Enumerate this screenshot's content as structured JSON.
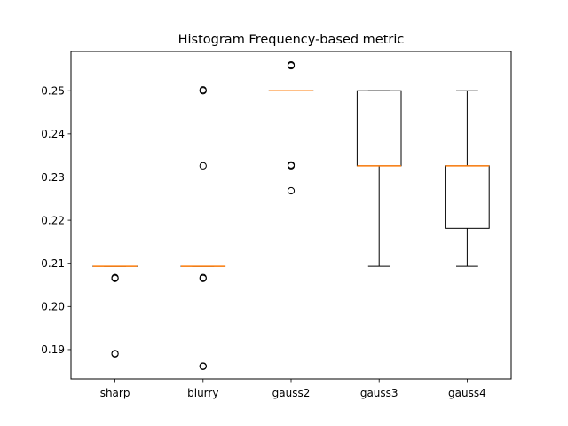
{
  "chart_data": {
    "type": "box",
    "title": "Histogram Frequency-based metric",
    "xlabel": "",
    "ylabel": "",
    "ylim": [
      0.1832,
      0.2591
    ],
    "yticks": [
      "0.19",
      "0.20",
      "0.21",
      "0.22",
      "0.23",
      "0.24",
      "0.25"
    ],
    "ytick_values": [
      0.19,
      0.2,
      0.21,
      0.22,
      0.23,
      0.24,
      0.25
    ],
    "grid": false,
    "categories": [
      "sharp",
      "blurry",
      "gauss2",
      "gauss3",
      "gauss4"
    ],
    "boxes": [
      {
        "q1": 0.2093,
        "median": 0.2093,
        "q3": 0.2093,
        "whisker_low": 0.2093,
        "whisker_high": 0.2093,
        "outliers": [
          0.2065,
          0.2066,
          0.2067,
          0.189,
          0.1891
        ]
      },
      {
        "q1": 0.2093,
        "median": 0.2093,
        "q3": 0.2093,
        "whisker_low": 0.2093,
        "whisker_high": 0.2093,
        "outliers": [
          0.25,
          0.2502,
          0.2326,
          0.2065,
          0.2067,
          0.1861,
          0.1862
        ]
      },
      {
        "q1": 0.25,
        "median": 0.25,
        "q3": 0.25,
        "whisker_low": 0.25,
        "whisker_high": 0.25,
        "outliers": [
          0.2558,
          0.256,
          0.2326,
          0.2328,
          0.2268
        ]
      },
      {
        "q1": 0.2326,
        "median": 0.2326,
        "q3": 0.25,
        "whisker_low": 0.2093,
        "whisker_high": 0.25,
        "outliers": []
      },
      {
        "q1": 0.2181,
        "median": 0.2326,
        "q3": 0.2326,
        "whisker_low": 0.2093,
        "whisker_high": 0.25,
        "outliers": []
      }
    ],
    "colors": {
      "box": "#000000",
      "median": "#ff7f0e",
      "outlier_edge": "#000000"
    }
  }
}
